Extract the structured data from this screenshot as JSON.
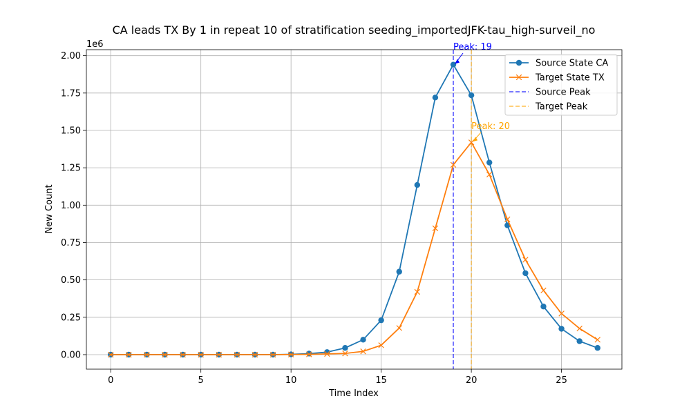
{
  "chart_data": {
    "type": "line",
    "title": "CA leads TX By 1 in repeat 10 of stratification seeding_importedJFK-tau_high-surveil_no",
    "xlabel": "Time Index",
    "ylabel": "New Count",
    "y_offset_label": "1e6",
    "xlim": [
      -1.35,
      28.35
    ],
    "ylim": [
      -0.097,
      2.04
    ],
    "x_ticks": [
      0,
      5,
      10,
      15,
      20,
      25
    ],
    "y_ticks": [
      0.0,
      0.25,
      0.5,
      0.75,
      1.0,
      1.25,
      1.5,
      1.75,
      2.0
    ],
    "y_tick_labels": [
      "0.00",
      "0.25",
      "0.50",
      "0.75",
      "1.00",
      "1.25",
      "1.50",
      "1.75",
      "2.00"
    ],
    "grid": true,
    "legend_position": "top-right",
    "x": [
      0,
      1,
      2,
      3,
      4,
      5,
      6,
      7,
      8,
      9,
      10,
      11,
      12,
      13,
      14,
      15,
      16,
      17,
      18,
      19,
      20,
      21,
      22,
      23,
      24,
      25,
      26,
      27
    ],
    "series": [
      {
        "name": "Source State CA",
        "color": "#1f77b4",
        "marker": "circle",
        "values": [
          0,
          0,
          0,
          0,
          0,
          0,
          0,
          0,
          0,
          0,
          0.002,
          0.007,
          0.017,
          0.045,
          0.1,
          0.23,
          0.555,
          1.135,
          1.72,
          1.94,
          1.735,
          1.285,
          0.865,
          0.545,
          0.322,
          0.173,
          0.09,
          0.045
        ]
      },
      {
        "name": "Target State TX",
        "color": "#ff7f0e",
        "marker": "x",
        "values": [
          0,
          0,
          0,
          0,
          0,
          0,
          0,
          0,
          0,
          0,
          0.001,
          0.002,
          0.005,
          0.008,
          0.022,
          0.063,
          0.178,
          0.42,
          0.845,
          1.27,
          1.42,
          1.205,
          0.905,
          0.635,
          0.43,
          0.275,
          0.175,
          0.1
        ]
      }
    ],
    "reference_lines": [
      {
        "name": "Source Peak",
        "x": 19,
        "color": "#0000ff",
        "style": "dashed"
      },
      {
        "name": "Target Peak",
        "x": 20,
        "color": "#ffa500",
        "style": "dashed"
      }
    ],
    "annotations": [
      {
        "text": "Peak: 19",
        "point": [
          19,
          1.94
        ],
        "text_pos": [
          19,
          2.04
        ],
        "color": "#0000ff"
      },
      {
        "text": "Peak: 20",
        "point": [
          20,
          1.42
        ],
        "text_pos": [
          20,
          1.51
        ],
        "color": "#ffa500"
      }
    ]
  }
}
